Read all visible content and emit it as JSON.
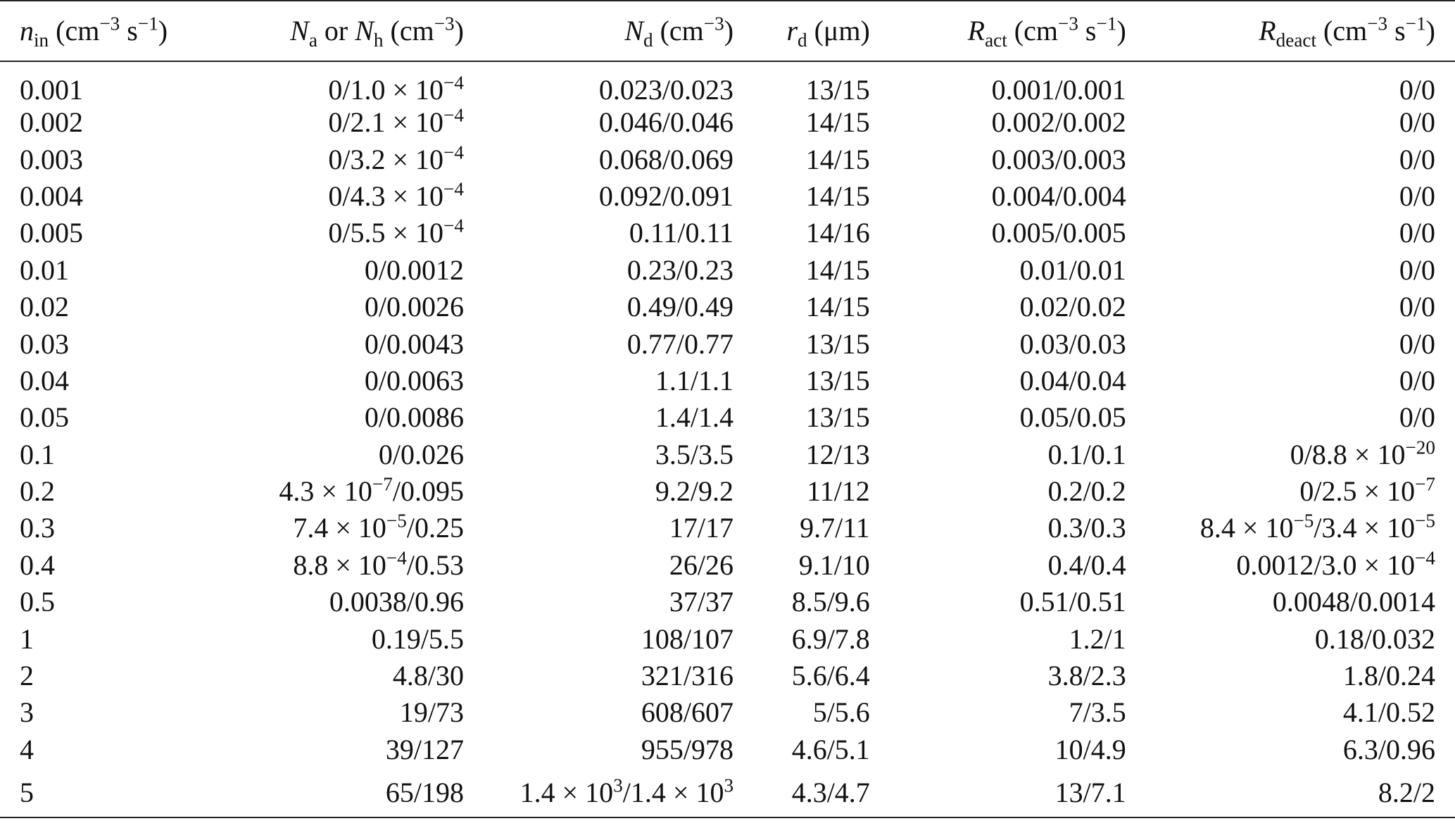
{
  "headers": {
    "n_in": {
      "sym": "n",
      "sub": "in",
      "unit_pre": " (cm",
      "unit_exp1": "−3",
      "unit_mid": " s",
      "unit_exp2": "−1",
      "unit_post": ")"
    },
    "na_nh": {
      "sym1": "N",
      "sub1": "a",
      "connector": " or ",
      "sym2": "N",
      "sub2": "h",
      "unit_pre": " (cm",
      "unit_exp": "−3",
      "unit_post": ")"
    },
    "nd": {
      "sym": "N",
      "sub": "d",
      "unit_pre": " (cm",
      "unit_exp": "−3",
      "unit_post": ")"
    },
    "rd": {
      "sym": "r",
      "sub": "d",
      "unit": " (μm)"
    },
    "ract": {
      "sym": "R",
      "sub": "act",
      "unit_pre": " (cm",
      "unit_exp1": "−3",
      "unit_mid": " s",
      "unit_exp2": "−1",
      "unit_post": ")"
    },
    "rdeact": {
      "sym": "R",
      "sub": "deact",
      "unit_pre": " (cm",
      "unit_exp1": "−3",
      "unit_mid": " s",
      "unit_exp2": "−1",
      "unit_post": ")"
    }
  },
  "rows": [
    {
      "n_in": "0.001",
      "na_nh": "0/1.0 × 10^{−4}",
      "nd": "0.023/0.023",
      "rd": "13/15",
      "ract": "0.001/0.001",
      "rdeact": "0/0"
    },
    {
      "n_in": "0.002",
      "na_nh": "0/2.1 × 10^{−4}",
      "nd": "0.046/0.046",
      "rd": "14/15",
      "ract": "0.002/0.002",
      "rdeact": "0/0"
    },
    {
      "n_in": "0.003",
      "na_nh": "0/3.2 × 10^{−4}",
      "nd": "0.068/0.069",
      "rd": "14/15",
      "ract": "0.003/0.003",
      "rdeact": "0/0"
    },
    {
      "n_in": "0.004",
      "na_nh": "0/4.3 × 10^{−4}",
      "nd": "0.092/0.091",
      "rd": "14/15",
      "ract": "0.004/0.004",
      "rdeact": "0/0"
    },
    {
      "n_in": "0.005",
      "na_nh": "0/5.5 × 10^{−4}",
      "nd": "0.11/0.11",
      "rd": "14/16",
      "ract": "0.005/0.005",
      "rdeact": "0/0"
    },
    {
      "n_in": "0.01",
      "na_nh": "0/0.0012",
      "nd": "0.23/0.23",
      "rd": "14/15",
      "ract": "0.01/0.01",
      "rdeact": "0/0"
    },
    {
      "n_in": "0.02",
      "na_nh": "0/0.0026",
      "nd": "0.49/0.49",
      "rd": "14/15",
      "ract": "0.02/0.02",
      "rdeact": "0/0"
    },
    {
      "n_in": "0.03",
      "na_nh": "0/0.0043",
      "nd": "0.77/0.77",
      "rd": "13/15",
      "ract": "0.03/0.03",
      "rdeact": "0/0"
    },
    {
      "n_in": "0.04",
      "na_nh": "0/0.0063",
      "nd": "1.1/1.1",
      "rd": "13/15",
      "ract": "0.04/0.04",
      "rdeact": "0/0"
    },
    {
      "n_in": "0.05",
      "na_nh": "0/0.0086",
      "nd": "1.4/1.4",
      "rd": "13/15",
      "ract": "0.05/0.05",
      "rdeact": "0/0"
    },
    {
      "n_in": "0.1",
      "na_nh": "0/0.026",
      "nd": "3.5/3.5",
      "rd": "12/13",
      "ract": "0.1/0.1",
      "rdeact": "0/8.8 × 10^{−20}"
    },
    {
      "n_in": "0.2",
      "na_nh": "4.3 × 10^{−7}/0.095",
      "nd": "9.2/9.2",
      "rd": "11/12",
      "ract": "0.2/0.2",
      "rdeact": "0/2.5 × 10^{−7}"
    },
    {
      "n_in": "0.3",
      "na_nh": "7.4 × 10^{−5}/0.25",
      "nd": "17/17",
      "rd": "9.7/11",
      "ract": "0.3/0.3",
      "rdeact": "8.4 × 10^{−5}/3.4 × 10^{−5}"
    },
    {
      "n_in": "0.4",
      "na_nh": "8.8 × 10^{−4}/0.53",
      "nd": "26/26",
      "rd": "9.1/10",
      "ract": "0.4/0.4",
      "rdeact": "0.0012/3.0 × 10^{−4}"
    },
    {
      "n_in": "0.5",
      "na_nh": "0.0038/0.96",
      "nd": "37/37",
      "rd": "8.5/9.6",
      "ract": "0.51/0.51",
      "rdeact": "0.0048/0.0014"
    },
    {
      "n_in": "1",
      "na_nh": "0.19/5.5",
      "nd": "108/107",
      "rd": "6.9/7.8",
      "ract": "1.2/1",
      "rdeact": "0.18/0.032"
    },
    {
      "n_in": "2",
      "na_nh": "4.8/30",
      "nd": "321/316",
      "rd": "5.6/6.4",
      "ract": "3.8/2.3",
      "rdeact": "1.8/0.24"
    },
    {
      "n_in": "3",
      "na_nh": "19/73",
      "nd": "608/607",
      "rd": "5/5.6",
      "ract": "7/3.5",
      "rdeact": "4.1/0.52"
    },
    {
      "n_in": "4",
      "na_nh": "39/127",
      "nd": "955/978",
      "rd": "4.6/5.1",
      "ract": "10/4.9",
      "rdeact": "6.3/0.96"
    },
    {
      "n_in": "5",
      "na_nh": "65/198",
      "nd": "1.4 × 10^{3}/1.4 × 10^{3}",
      "rd": "4.3/4.7",
      "ract": "13/7.1",
      "rdeact": "8.2/2"
    }
  ]
}
